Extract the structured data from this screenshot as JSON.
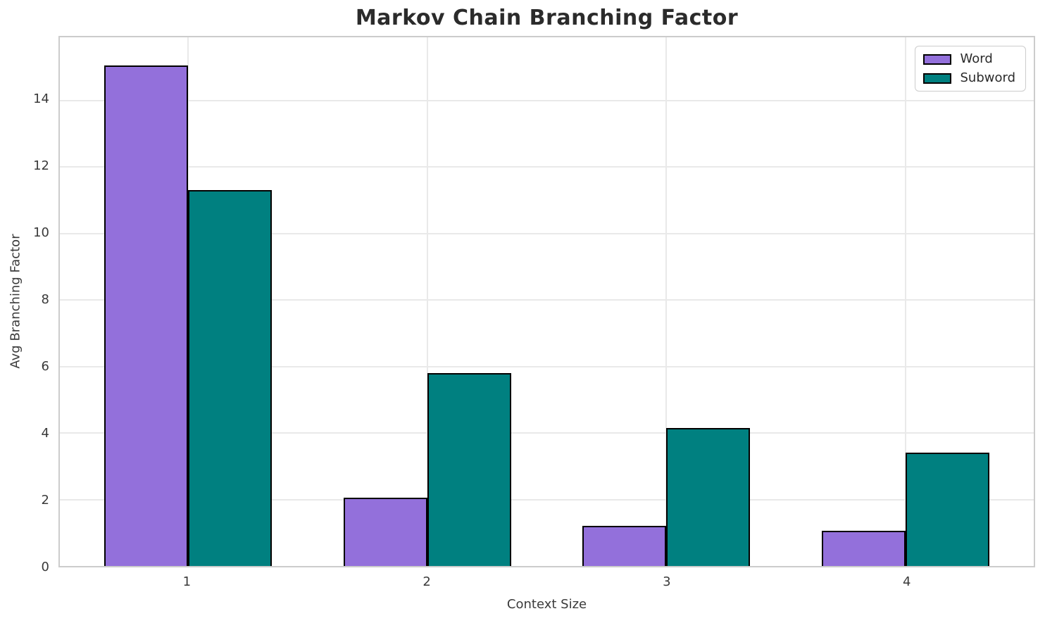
{
  "title": "Markov Chain Branching Factor",
  "chart_data": {
    "type": "bar",
    "categories": [
      "1",
      "2",
      "3",
      "4"
    ],
    "series": [
      {
        "name": "Word",
        "color": "#9370DB",
        "values": [
          15.05,
          2.05,
          1.2,
          1.05
        ]
      },
      {
        "name": "Subword",
        "color": "#008080",
        "values": [
          11.3,
          5.8,
          4.15,
          3.4
        ]
      }
    ],
    "title": "Markov Chain Branching Factor",
    "xlabel": "Context Size",
    "ylabel": "Avg Branching Factor",
    "xticks": [
      1,
      2,
      3,
      4
    ],
    "yticks": [
      0,
      2,
      4,
      6,
      8,
      10,
      12,
      14
    ],
    "ylim": [
      0,
      15.9
    ],
    "xlim": [
      0.465,
      4.535
    ],
    "bar_width": 0.35,
    "bar_edge_color": "#000000",
    "grid": true,
    "grid_color": "#e9e9e9",
    "spine_color": "#cccccc",
    "legend_position": "upper right",
    "legend": [
      "Word",
      "Subword"
    ]
  }
}
